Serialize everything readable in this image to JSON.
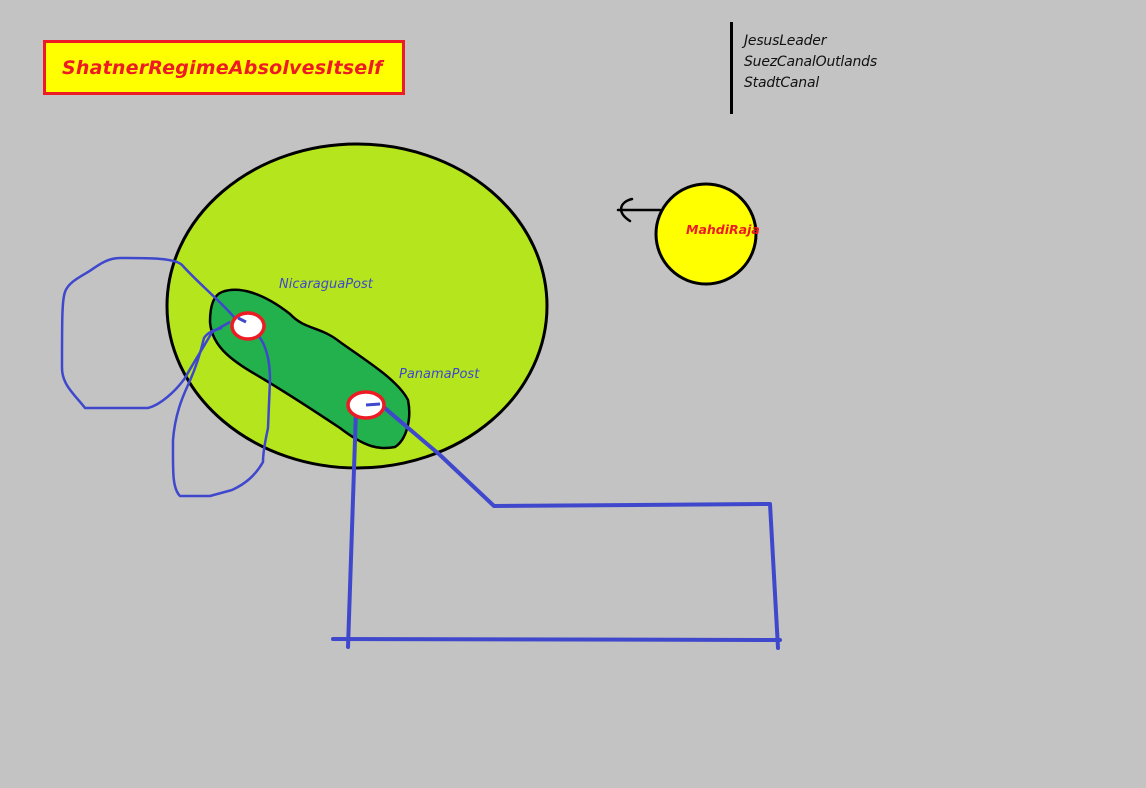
{
  "title": "ShatnerRegimeAbsolvesItself",
  "legend": [
    "JesusLeader",
    "SuezCanalOutlands",
    "StadtCanal"
  ],
  "labels": {
    "nicaragua": "NicaraguaPost",
    "panama": "PanamaPost",
    "mahdi": "MahdiRaja"
  },
  "colors": {
    "background": "#c3c3c3",
    "large_circle": "#b5e61d",
    "inner_shape": "#22b14c",
    "sun": "#ffff00",
    "accent_red": "#ed1c24",
    "line_blue": "#3f48cc",
    "outline": "#000000"
  }
}
